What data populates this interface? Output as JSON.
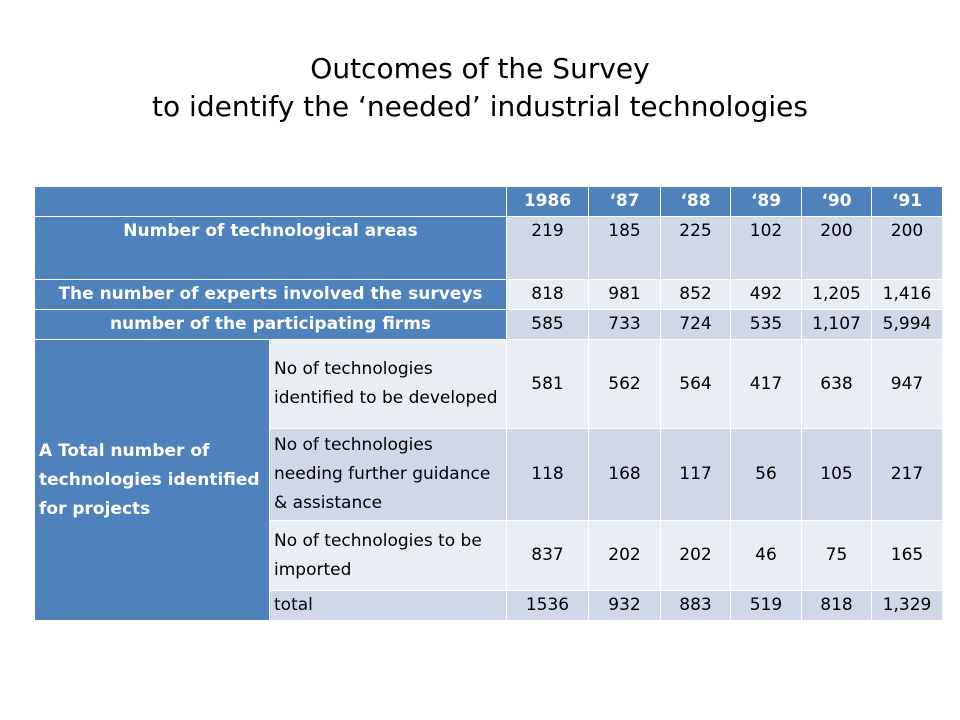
{
  "title": {
    "line1": "Outcomes of the Survey",
    "line2": "to identify the ‘needed’ industrial technologies"
  },
  "table": {
    "years": [
      "1986",
      "‘87",
      "‘88",
      "‘89",
      "‘90",
      "‘91"
    ],
    "rows": {
      "areas": {
        "label": "Number of technological areas",
        "values": [
          "219",
          "185",
          "225",
          "102",
          "200",
          "200"
        ]
      },
      "experts": {
        "label": "The number of experts involved the surveys",
        "values": [
          "818",
          "981",
          "852",
          "492",
          "1,205",
          "1,416"
        ]
      },
      "firms": {
        "label": "number of the participating firms",
        "values": [
          "585",
          "733",
          "724",
          "535",
          "1,107",
          "5,994"
        ]
      }
    },
    "group_label": "A Total number of technologies identified for projects",
    "subrows": {
      "developed": {
        "label": "No of technologies identified to be developed",
        "values": [
          "581",
          "562",
          "564",
          "417",
          "638",
          "947"
        ]
      },
      "guidance": {
        "label": "No of technologies needing further guidance & assistance",
        "values": [
          "118",
          "168",
          "117",
          "56",
          "105",
          "217"
        ]
      },
      "imported": {
        "label": "No of technologies to be imported",
        "values": [
          "837",
          "202",
          "202",
          "46",
          "75",
          "165"
        ]
      },
      "total": {
        "label": "total",
        "values": [
          "1536",
          "932",
          "883",
          "519",
          "818",
          "1,329"
        ]
      }
    }
  }
}
